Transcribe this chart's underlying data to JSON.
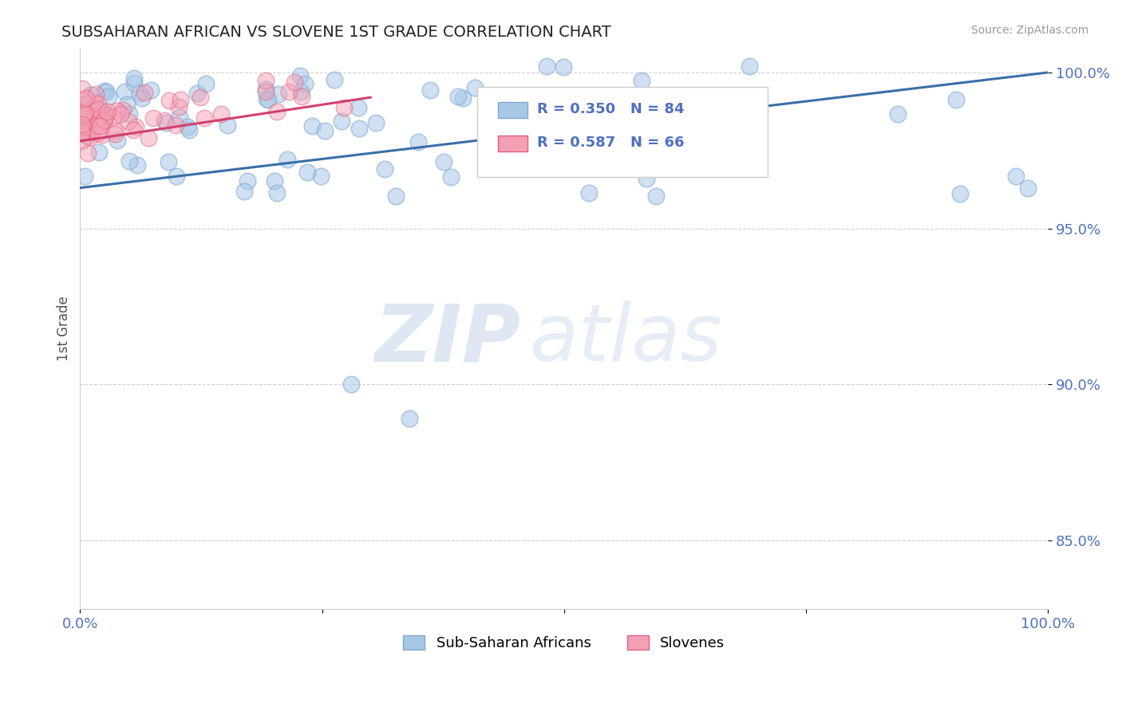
{
  "title": "SUBSAHARAN AFRICAN VS SLOVENE 1ST GRADE CORRELATION CHART",
  "source_text": "Source: ZipAtlas.com",
  "ylabel": "1st Grade",
  "xlim": [
    0.0,
    1.0
  ],
  "ylim": [
    0.828,
    1.008
  ],
  "yticks": [
    0.85,
    0.9,
    0.95,
    1.0
  ],
  "ytick_labels": [
    "85.0%",
    "90.0%",
    "95.0%",
    "100.0%"
  ],
  "xticks": [
    0.0,
    0.25,
    0.5,
    0.75,
    1.0
  ],
  "xtick_labels": [
    "0.0%",
    "",
    "",
    "",
    "100.0%"
  ],
  "blue_R": 0.35,
  "blue_N": 84,
  "pink_R": 0.587,
  "pink_N": 66,
  "blue_color": "#A8C8E8",
  "pink_color": "#F4A0B4",
  "blue_edge_color": "#80A8D0",
  "pink_edge_color": "#E06080",
  "blue_line_color": "#3A6FA8",
  "pink_line_color": "#D04070",
  "legend_label_blue": "Sub-Saharan Africans",
  "legend_label_pink": "Slovenes",
  "watermark_zip": "ZIP",
  "watermark_atlas": "atlas",
  "background_color": "#FFFFFF",
  "grid_color": "#CCCCCC",
  "tick_color": "#5070C0",
  "blue_trend_x0": 0.0,
  "blue_trend_x1": 1.0,
  "blue_trend_y0": 0.963,
  "blue_trend_y1": 1.0,
  "pink_trend_x0": 0.0,
  "pink_trend_x1": 0.3,
  "pink_trend_y0": 0.978,
  "pink_trend_y1": 0.992
}
